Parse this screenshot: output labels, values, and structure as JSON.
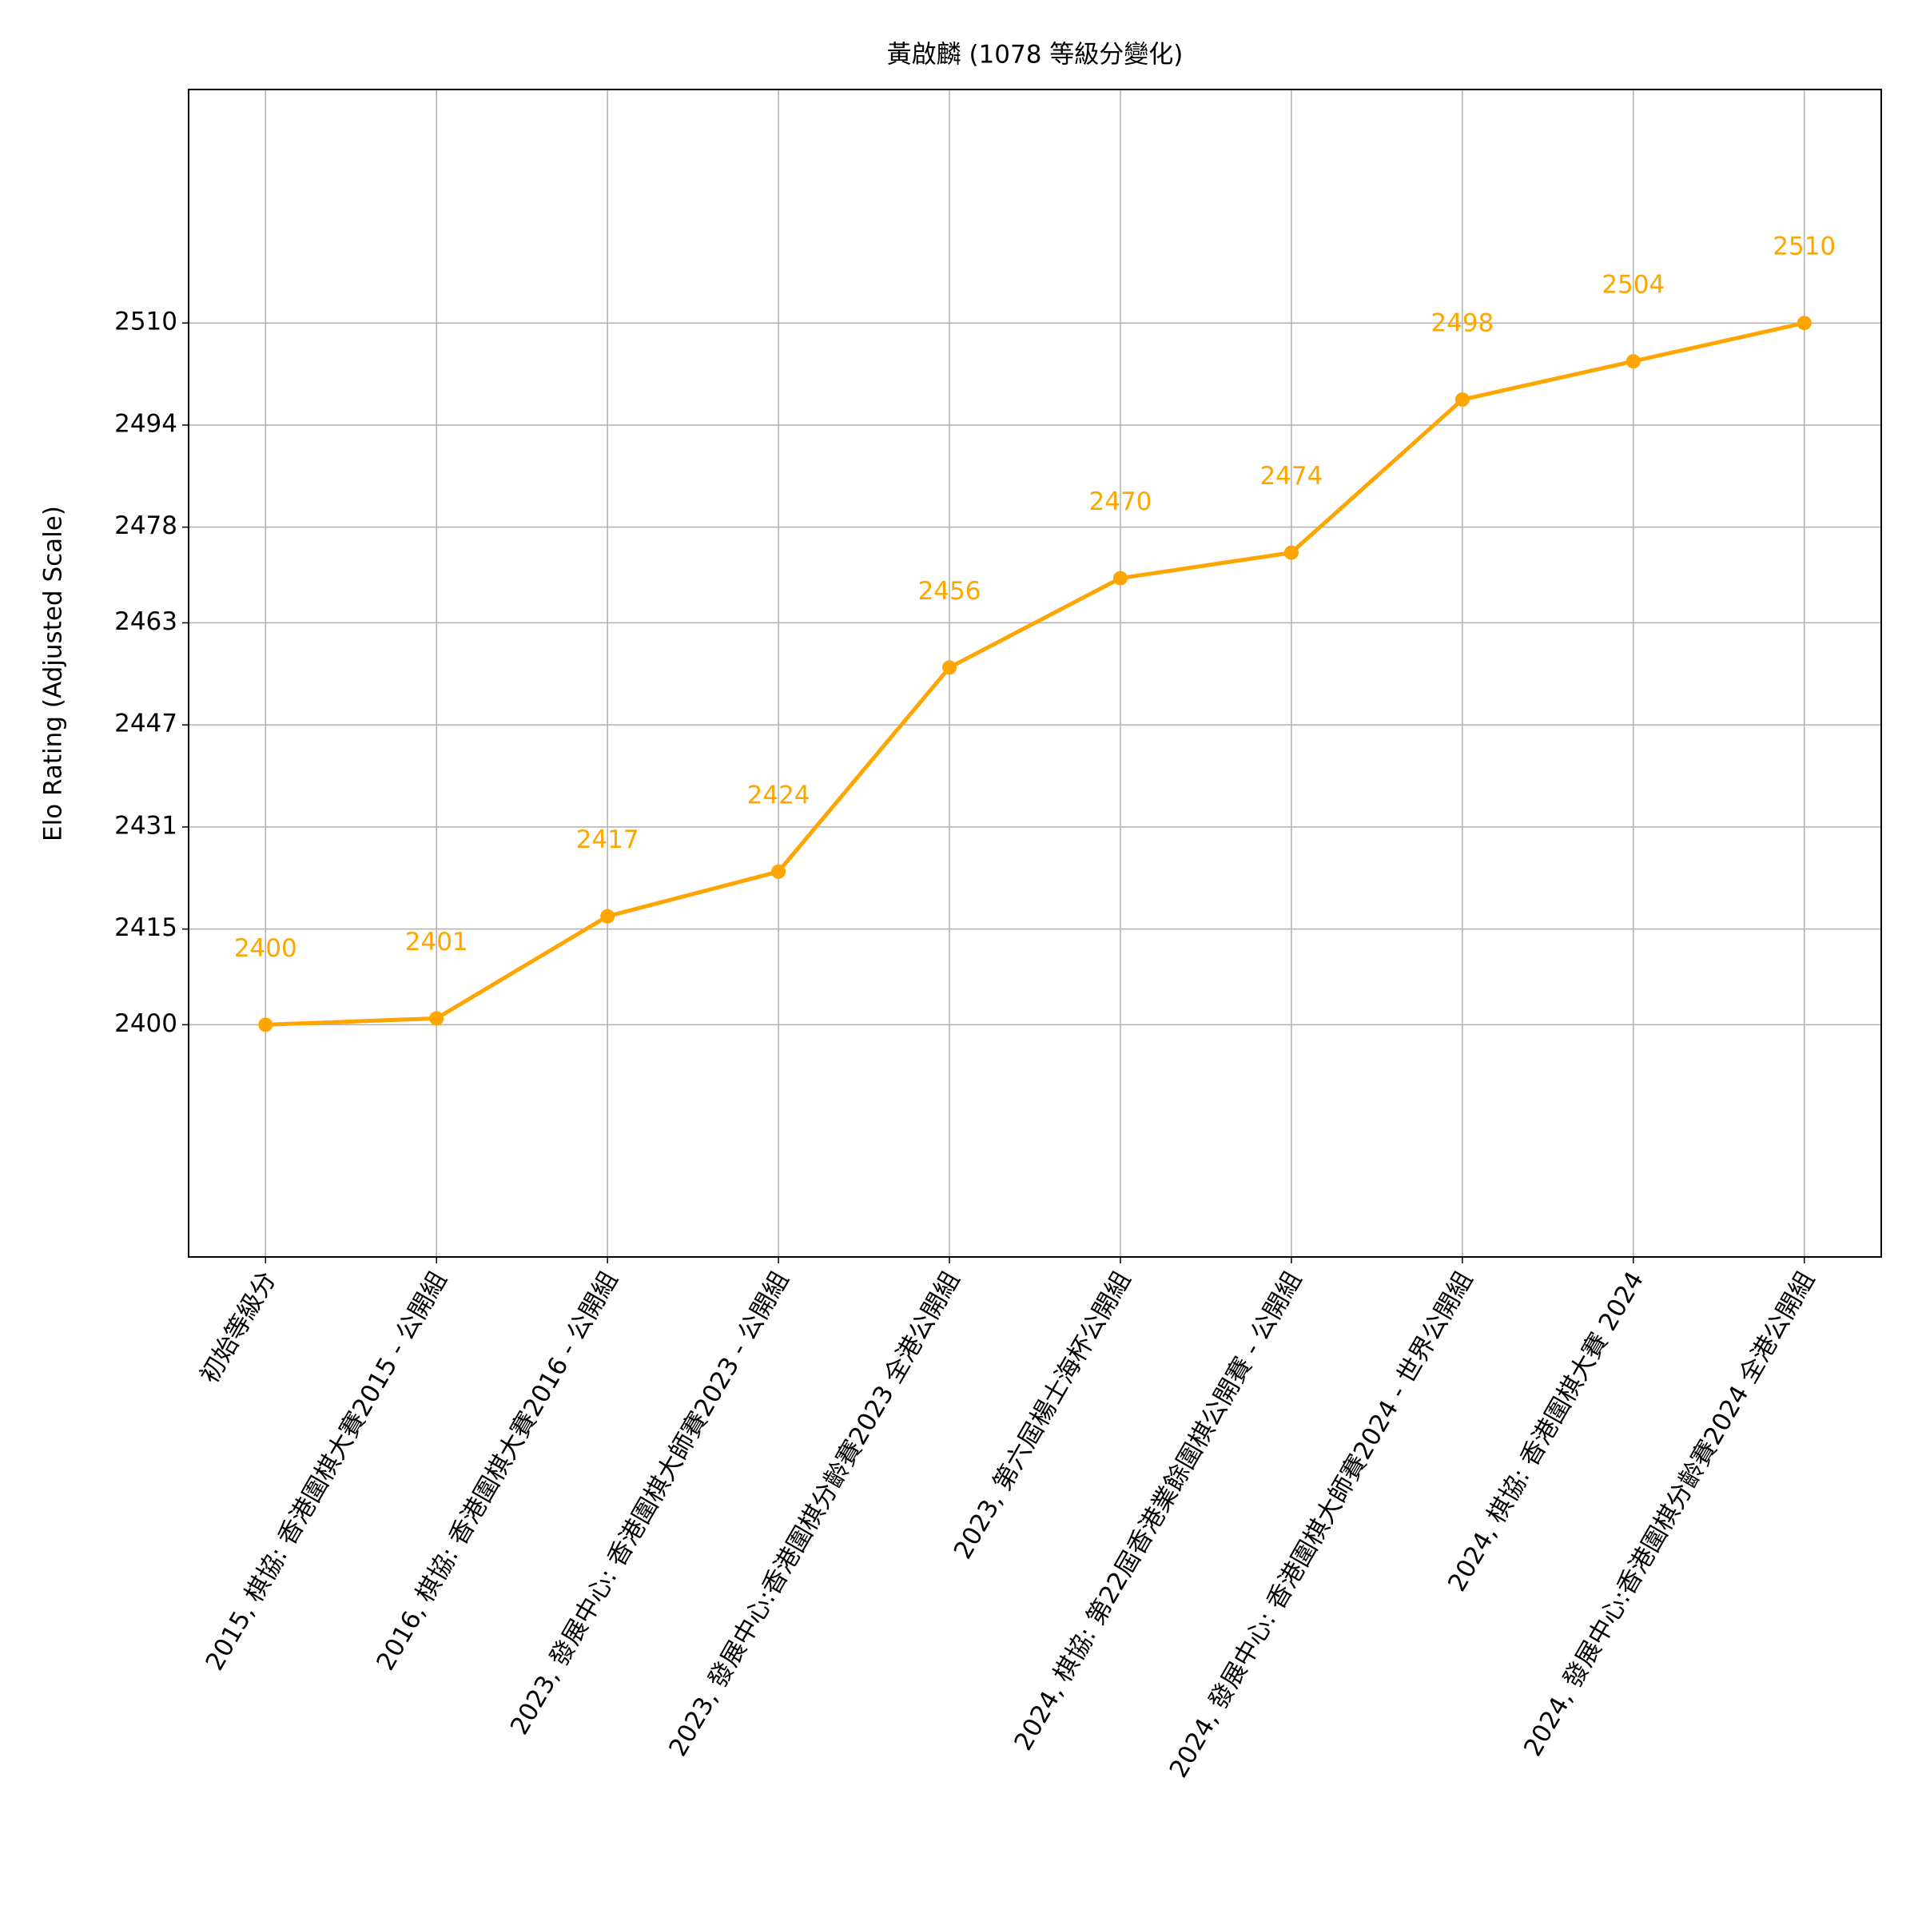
{
  "chart_data": {
    "type": "line",
    "title": "黃啟麟 (1078 等級分變化)",
    "y_label": "Elo Rating (Adjusted Scale)",
    "categories": [
      "初始等級分",
      "2015, 棋協: 香港圍棋大賽2015 - 公開組",
      "2016, 棋協: 香港圍棋大賽2016 - 公開組",
      "2023, 發展中心: 香港圍棋大師賽2023 - 公開組",
      "2023, 發展中心:香港圍棋分齡賽2023 全港公開組",
      "2023, 第六屆楊士海杯公開組",
      "2024, 棋協: 第22屆香港業餘圍棋公開賽 - 公開組",
      "2024, 發展中心: 香港圍棋大師賽2024 - 世界公開組",
      "2024, 棋協: 香港圍棋大賽 2024",
      "2024, 發展中心:香港圍棋分齡賽2024 全港公開組"
    ],
    "values": [
      2400,
      2401,
      2417,
      2424,
      2456,
      2470,
      2474,
      2498,
      2504,
      2510
    ],
    "color": "#ffa500",
    "ylim": [
      2363.6,
      2546.6
    ],
    "yticks": [
      2400,
      2415,
      2431,
      2447,
      2463,
      2478,
      2494,
      2510
    ],
    "grid": true
  }
}
